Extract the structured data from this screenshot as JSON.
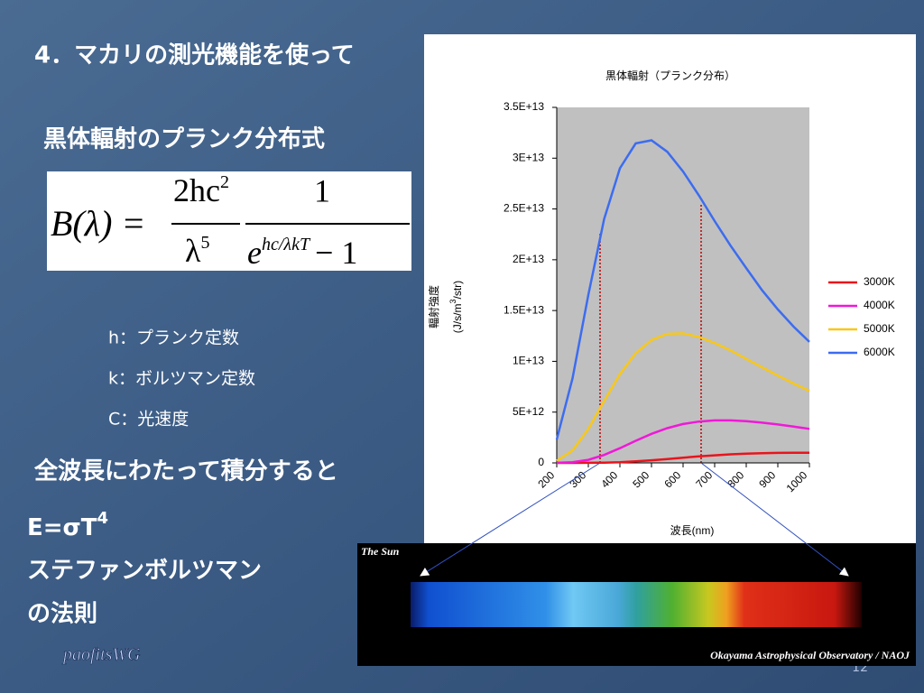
{
  "heading": "4．マカリの測光機能を使って",
  "formula_title": "黒体輻射のプランク分布式",
  "formula": {
    "lhs": "B(λ) =",
    "numerator": "2hc",
    "numerator_exp": "2",
    "denominator": "λ",
    "denominator_exp": "5",
    "one": "1",
    "e": "e",
    "exponent": "hc/λkT",
    "minus_one": "− 1"
  },
  "definitions": [
    "h：プランク定数",
    "k：ボルツマン定数",
    "C：光速度"
  ],
  "integration_text": "全波長にわたって積分すると",
  "law": {
    "formula": "E=σT",
    "formula_exp": "4",
    "name": [
      "ステファンボルツマン",
      "の法則"
    ]
  },
  "logo": "paofitsWG",
  "page_number": "12",
  "spectrum": {
    "title": "The Sun",
    "credit": "Okayama Astrophysical Observatory / NAOJ"
  },
  "chart_data": {
    "type": "line",
    "title": "黒体輻射（プランク分布）",
    "x_label": "波長(nm)",
    "y_label": [
      "輻射強度",
      "(J/s/m",
      "3",
      "/str)"
    ],
    "x": [
      200,
      250,
      300,
      350,
      400,
      450,
      500,
      550,
      600,
      650,
      700,
      750,
      800,
      850,
      900,
      950,
      1000
    ],
    "xlim": [
      200,
      1000
    ],
    "xticks": [
      200,
      300,
      400,
      500,
      600,
      700,
      800,
      900,
      1000
    ],
    "ylim": [
      0,
      35000000000000.0
    ],
    "yticks": [
      0,
      {
        "value": 5000000000000.0,
        "label": "5E+12"
      },
      {
        "value": 10000000000000.0,
        "label": "1E+13"
      },
      {
        "value": 15000000000000.0,
        "label": "1.5E+13"
      },
      {
        "value": 20000000000000.0,
        "label": "2E+13"
      },
      {
        "value": 25000000000000.0,
        "label": "2.5E+13"
      },
      {
        "value": 30000000000000.0,
        "label": "3E+13"
      },
      {
        "value": 35000000000000.0,
        "label": "3.5E+13"
      }
    ],
    "plot_background": "#c0c0c0",
    "legend": "right",
    "series": [
      {
        "name": "3000K",
        "color": "#e8141c",
        "values": [
          14000000.0,
          570000000.0,
          5570000000.0,
          25400000000.0,
          72200000000.0,
          152000000000.0,
          260000000000.0,
          386000000000.0,
          517000000000.0,
          642000000000.0,
          750000000000.0,
          841000000000.0,
          908000000000.0,
          955000000000.0,
          983000000000.0,
          995000000000.0,
          992000000000.0
        ]
      },
      {
        "name": "4000K",
        "color": "#f018d8",
        "values": [
          5750000000.0,
          68700000000.0,
          304000000000.0,
          781000000000.0,
          1444000000000.0,
          2180000000000.0,
          2860000000000.0,
          3420000000000.0,
          3830000000000.0,
          4070000000000.0,
          4180000000000.0,
          4180000000000.0,
          4100000000000.0,
          3960000000000.0,
          3780000000000.0,
          3570000000000.0,
          3350000000000.0
        ]
      },
      {
        "name": "5000K",
        "color": "#f8c818",
        "values": [
          210000000000.0,
          1223000000000.0,
          3350000000000.0,
          6090000000000.0,
          8740000000000.0,
          10800000000000.0,
          12100000000000.0,
          12700000000000.0,
          12760000000000.0,
          12400000000000.0,
          11810000000000.0,
          11090000000000.0,
          10240000000000.0,
          9420000000000.0,
          8600000000000.0,
          7820000000000.0,
          7100000000000.0
        ]
      },
      {
        "name": "6000K",
        "color": "#3c6cf0",
        "values": [
          2310000000000.0,
          8330000000000.0,
          16540000000000.0,
          24000000000000.0,
          29000000000000.0,
          31460000000000.0,
          31760000000000.0,
          30630000000000.0,
          28680000000000.0,
          26340000000000.0,
          23810000000000.0,
          21400000000000.0,
          19180000000000.0,
          17000000000000.0,
          15110000000000.0,
          13410000000000.0,
          11910000000000.0
        ]
      }
    ]
  }
}
